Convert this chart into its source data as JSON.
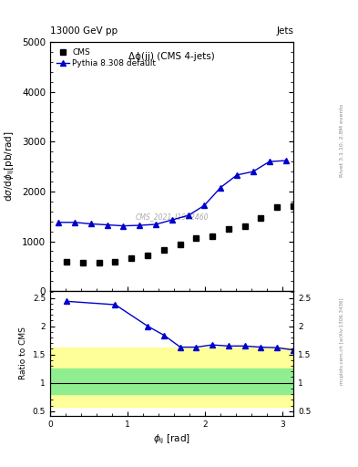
{
  "title_top": "13000 GeV pp",
  "title_right": "Jets",
  "plot_title": "Δϕ(jj) (CMS 4-jets)",
  "watermark": "CMS_2021_I1932460",
  "ylabel_main": "dσ/dϕ$_{\\rm ij}$[pb/rad]",
  "ylabel_ratio": "Ratio to CMS",
  "xlabel": "ϕ$_{\\rm ij}$ [rad]",
  "right_label_main": "Rivet 3.1.10, 2.8M events",
  "right_label_ratio": "mcplots.cern.ch [arXiv:1306.3436]",
  "cms_x": [
    0.21,
    0.42,
    0.63,
    0.84,
    1.05,
    1.26,
    1.47,
    1.68,
    1.885,
    2.09,
    2.3,
    2.51,
    2.72,
    2.93,
    3.14
  ],
  "cms_y": [
    580,
    565,
    575,
    595,
    660,
    720,
    820,
    940,
    1060,
    1110,
    1250,
    1300,
    1470,
    1680,
    1700
  ],
  "pythia_x": [
    0.105,
    0.315,
    0.525,
    0.735,
    0.945,
    1.155,
    1.365,
    1.575,
    1.785,
    1.99,
    2.2,
    2.41,
    2.62,
    2.83,
    3.04
  ],
  "pythia_y": [
    1380,
    1380,
    1350,
    1330,
    1310,
    1320,
    1340,
    1430,
    1520,
    1720,
    2080,
    2330,
    2400,
    2600,
    2620
  ],
  "ratio_x": [
    0.21,
    0.84,
    1.26,
    1.47,
    1.68,
    1.885,
    2.09,
    2.3,
    2.51,
    2.72,
    2.93,
    3.14
  ],
  "ratio_y": [
    2.44,
    2.38,
    2.0,
    1.84,
    1.63,
    1.63,
    1.67,
    1.65,
    1.65,
    1.63,
    1.62,
    1.58
  ],
  "green_band_lo": 0.8,
  "green_band_hi": 1.25,
  "yellow_band_lo": 0.58,
  "yellow_band_hi": 1.62,
  "ratio_ylim": [
    0.42,
    2.62
  ],
  "ratio_yticks": [
    0.5,
    1.0,
    1.5,
    2.0,
    2.5
  ],
  "main_ylim": [
    0,
    5000
  ],
  "main_yticks": [
    0,
    1000,
    2000,
    3000,
    4000,
    5000
  ],
  "xlim": [
    0,
    3.14159
  ],
  "xticks": [
    0,
    1,
    2,
    3
  ],
  "cms_color": "black",
  "pythia_color": "#0000cc",
  "green_color": "#90ee90",
  "yellow_color": "#ffff99",
  "cms_marker": "s",
  "pythia_marker": "^",
  "cms_markersize": 4,
  "pythia_markersize": 4,
  "font_size": 7.5,
  "title_font_size": 7.5
}
